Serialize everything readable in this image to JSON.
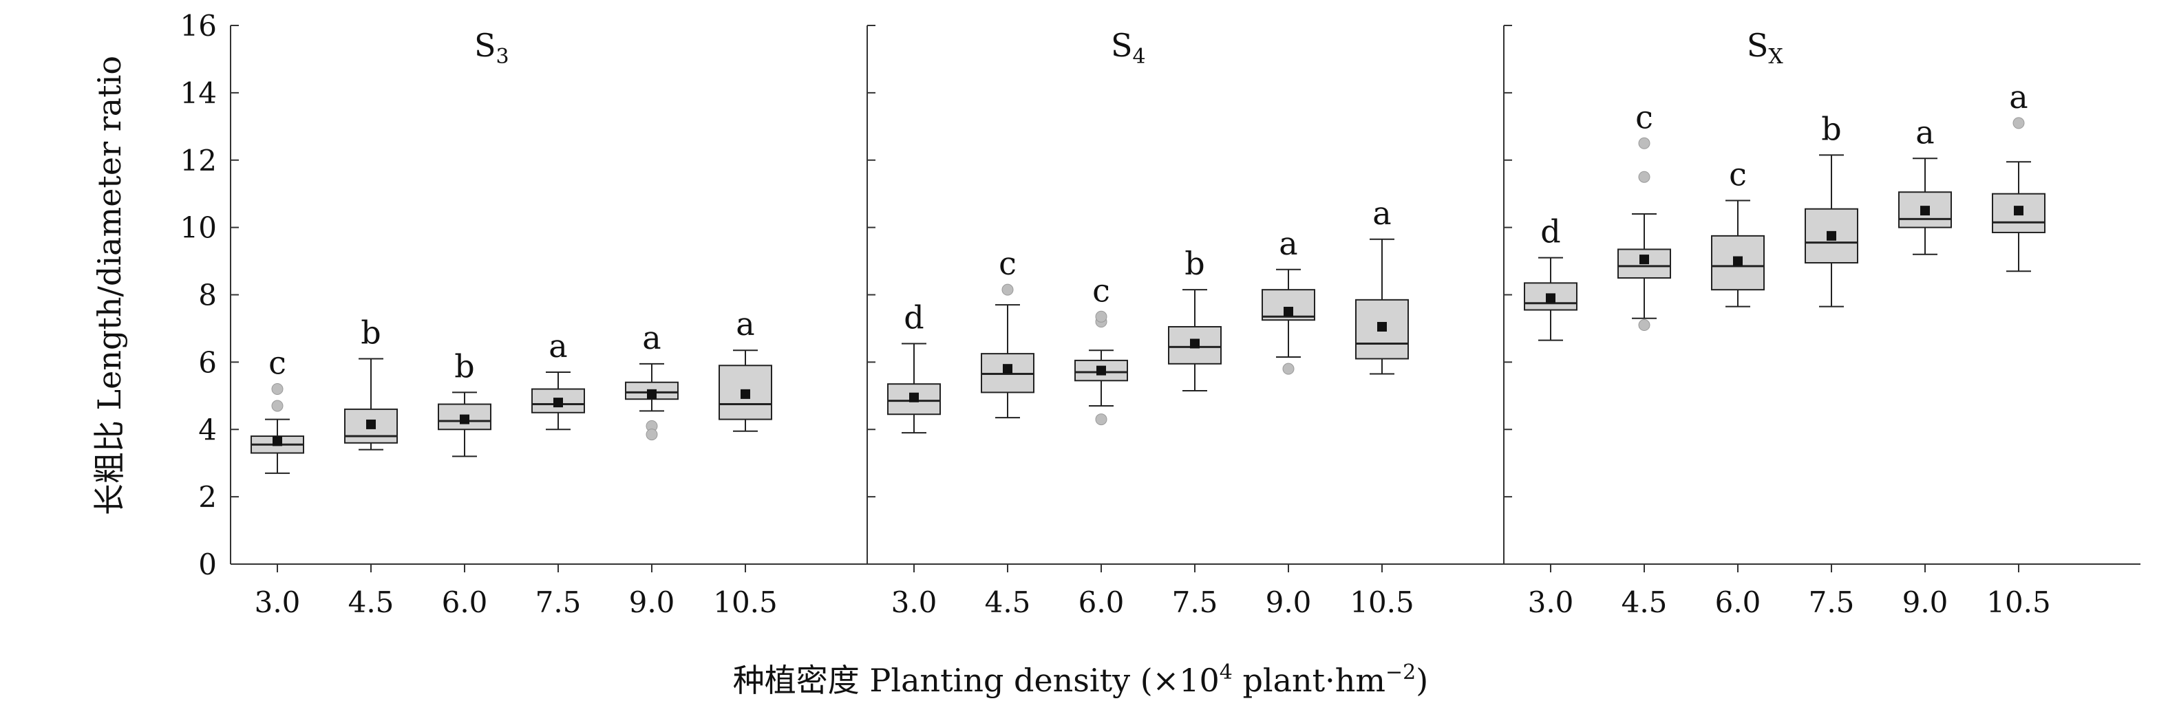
{
  "chart_data": {
    "type": "boxplot",
    "ylabel": "长粗比 Length/diameter ratio",
    "xlabel_main": "种植密度 Planting density (×10",
    "xlabel_sup1": "4",
    "xlabel_mid": " plant·hm",
    "xlabel_sup2": "−2",
    "xlabel_end": ")",
    "ylim": [
      0,
      16
    ],
    "yticks": [
      "0",
      "2",
      "4",
      "6",
      "8",
      "10",
      "12",
      "14",
      "16"
    ],
    "categories": [
      "3.0",
      "4.5",
      "6.0",
      "7.5",
      "9.0",
      "10.5"
    ],
    "colors": {
      "box": "#d3d3d3",
      "outlier": "#bdbdbd",
      "mean": "#111111",
      "line": "#222222"
    },
    "panels": [
      {
        "title": "S",
        "title_sub": "3",
        "boxes": [
          {
            "category": "3.0",
            "whisker_low": 2.7,
            "q1": 3.3,
            "median": 3.55,
            "q3": 3.8,
            "whisker_high": 4.3,
            "mean": 3.65,
            "outliers": [
              4.7,
              5.2
            ],
            "letter": "c"
          },
          {
            "category": "4.5",
            "whisker_low": 3.4,
            "q1": 3.6,
            "median": 3.8,
            "q3": 4.6,
            "whisker_high": 6.1,
            "mean": 4.15,
            "outliers": [],
            "letter": "b"
          },
          {
            "category": "6.0",
            "whisker_low": 3.2,
            "q1": 4.0,
            "median": 4.25,
            "q3": 4.75,
            "whisker_high": 5.1,
            "mean": 4.3,
            "outliers": [],
            "letter": "b"
          },
          {
            "category": "7.5",
            "whisker_low": 4.0,
            "q1": 4.5,
            "median": 4.75,
            "q3": 5.2,
            "whisker_high": 5.7,
            "mean": 4.8,
            "outliers": [],
            "letter": "a"
          },
          {
            "category": "9.0",
            "whisker_low": 4.55,
            "q1": 4.9,
            "median": 5.1,
            "q3": 5.4,
            "whisker_high": 5.95,
            "mean": 5.05,
            "outliers": [
              4.1,
              3.85
            ],
            "letter": "a"
          },
          {
            "category": "10.5",
            "whisker_low": 3.95,
            "q1": 4.3,
            "median": 4.75,
            "q3": 5.9,
            "whisker_high": 6.35,
            "mean": 5.05,
            "outliers": [],
            "letter": "a"
          }
        ]
      },
      {
        "title": "S",
        "title_sub": "4",
        "boxes": [
          {
            "category": "3.0",
            "whisker_low": 3.9,
            "q1": 4.45,
            "median": 4.85,
            "q3": 5.35,
            "whisker_high": 6.55,
            "mean": 4.95,
            "outliers": [],
            "letter": "d"
          },
          {
            "category": "4.5",
            "whisker_low": 4.35,
            "q1": 5.1,
            "median": 5.65,
            "q3": 6.25,
            "whisker_high": 7.7,
            "mean": 5.8,
            "outliers": [
              8.15
            ],
            "letter": "c"
          },
          {
            "category": "6.0",
            "whisker_low": 4.7,
            "q1": 5.45,
            "median": 5.7,
            "q3": 6.05,
            "whisker_high": 6.35,
            "mean": 5.75,
            "outliers": [
              4.3,
              7.2,
              7.35
            ],
            "letter": "c"
          },
          {
            "category": "7.5",
            "whisker_low": 5.15,
            "q1": 5.95,
            "median": 6.45,
            "q3": 7.05,
            "whisker_high": 8.15,
            "mean": 6.55,
            "outliers": [],
            "letter": "b"
          },
          {
            "category": "9.0",
            "whisker_low": 6.15,
            "q1": 7.25,
            "median": 7.35,
            "q3": 8.15,
            "whisker_high": 8.75,
            "mean": 7.5,
            "outliers": [
              5.8
            ],
            "letter": "a"
          },
          {
            "category": "10.5",
            "whisker_low": 5.65,
            "q1": 6.1,
            "median": 6.55,
            "q3": 7.85,
            "whisker_high": 9.65,
            "mean": 7.05,
            "outliers": [],
            "letter": "a"
          }
        ]
      },
      {
        "title": "S",
        "title_sub": "X",
        "boxes": [
          {
            "category": "3.0",
            "whisker_low": 6.65,
            "q1": 7.55,
            "median": 7.75,
            "q3": 8.35,
            "whisker_high": 9.1,
            "mean": 7.9,
            "outliers": [],
            "letter": "d"
          },
          {
            "category": "4.5",
            "whisker_low": 7.3,
            "q1": 8.5,
            "median": 8.85,
            "q3": 9.35,
            "whisker_high": 10.4,
            "mean": 9.05,
            "outliers": [
              7.1,
              11.5,
              12.5
            ],
            "letter": "c"
          },
          {
            "category": "6.0",
            "whisker_low": 7.65,
            "q1": 8.15,
            "median": 8.85,
            "q3": 9.75,
            "whisker_high": 10.8,
            "mean": 9.0,
            "outliers": [],
            "letter": "c"
          },
          {
            "category": "7.5",
            "whisker_low": 7.65,
            "q1": 8.95,
            "median": 9.55,
            "q3": 10.55,
            "whisker_high": 12.15,
            "mean": 9.75,
            "outliers": [],
            "letter": "b"
          },
          {
            "category": "9.0",
            "whisker_low": 9.2,
            "q1": 10.0,
            "median": 10.25,
            "q3": 11.05,
            "whisker_high": 12.05,
            "mean": 10.5,
            "outliers": [],
            "letter": "a"
          },
          {
            "category": "10.5",
            "whisker_low": 8.7,
            "q1": 9.85,
            "median": 10.15,
            "q3": 11.0,
            "whisker_high": 11.95,
            "mean": 10.5,
            "outliers": [
              13.1
            ],
            "letter": "a"
          }
        ]
      }
    ]
  }
}
